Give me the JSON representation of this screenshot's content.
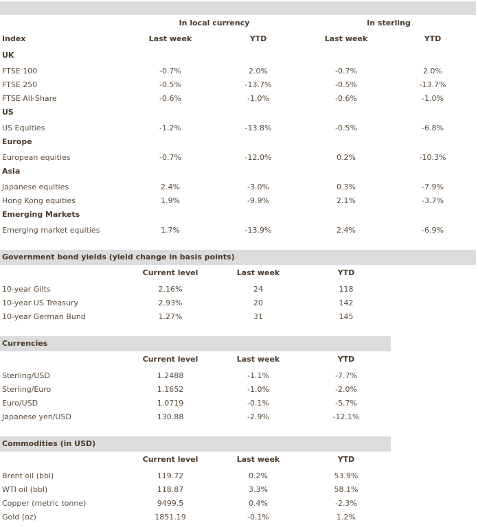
{
  "equities": {
    "group_headers": [
      "In local currency",
      "In sterling"
    ],
    "columns": [
      "Index",
      "Last week",
      "YTD",
      "Last week",
      "YTD"
    ],
    "sections": [
      {
        "title": "UK",
        "rows": [
          {
            "name": "FTSE 100",
            "values": [
              "-0.7%",
              "2.0%",
              "-0.7%",
              "2.0%"
            ]
          },
          {
            "name": "FTSE 250",
            "values": [
              "-0.5%",
              "-13.7%",
              "-0.5%",
              "-13.7%"
            ]
          },
          {
            "name": "FTSE All-Share",
            "values": [
              "-0.6%",
              "-1.0%",
              "-0.6%",
              "-1.0%"
            ]
          }
        ]
      },
      {
        "title": "US",
        "rows": [
          {
            "name": "US Equities",
            "values": [
              "-1.2%",
              "-13.8%",
              "-0.5%",
              "-6.8%"
            ]
          }
        ]
      },
      {
        "title": "Europe",
        "rows": [
          {
            "name": "European equities",
            "values": [
              "-0.7%",
              "-12.0%",
              "0.2%",
              "-10.3%"
            ]
          }
        ]
      },
      {
        "title": "Asia",
        "rows": [
          {
            "name": "Japanese equities",
            "values": [
              "2.4%",
              "-3.0%",
              "0.3%",
              "-7.9%"
            ]
          },
          {
            "name": "Hong Kong equities",
            "values": [
              "1.9%",
              "-9.9%",
              "2.1%",
              "-3.7%"
            ]
          }
        ]
      },
      {
        "title": "Emerging Markets",
        "rows": [
          {
            "name": "Emerging market equities",
            "values": [
              "1.7%",
              "-13.9%",
              "2.4%",
              "-6.9%"
            ]
          }
        ]
      }
    ]
  },
  "bonds": {
    "title": "Government bond yields (yield change in basis points)",
    "columns": [
      "Current level",
      "Last week",
      "YTD"
    ],
    "rows": [
      {
        "name": "10-year Gilts",
        "values": [
          "2.16%",
          "24",
          "118"
        ]
      },
      {
        "name": "10-year US Treasury",
        "values": [
          "2.93%",
          "20",
          "142"
        ]
      },
      {
        "name": "10-year German Bund",
        "values": [
          "1.27%",
          "31",
          "145"
        ]
      }
    ]
  },
  "currencies": {
    "title": "Currencies",
    "columns": [
      "Current level",
      "Last week",
      "YTD"
    ],
    "rows": [
      {
        "name": "Sterling/USD",
        "values": [
          "1.2488",
          "-1.1%",
          "-7.7%"
        ]
      },
      {
        "name": "Sterling/Euro",
        "values": [
          "1.1652",
          "-1.0%",
          "-2.0%"
        ]
      },
      {
        "name": "Euro/USD",
        "values": [
          "1.0719",
          "-0.1%",
          "-5.7%"
        ]
      },
      {
        "name": "Japanese yen/USD",
        "values": [
          "130.88",
          "-2.9%",
          "-12.1%"
        ]
      }
    ]
  },
  "commodities": {
    "title": "Commodities (in USD)",
    "columns": [
      "Current level",
      "Last week",
      "YTD"
    ],
    "rows": [
      {
        "name": "Brent oil (bbl)",
        "values": [
          "119.72",
          "0.2%",
          "53.9%"
        ]
      },
      {
        "name": "WTI oil (bbl)",
        "values": [
          "118.87",
          "3.3%",
          "58.1%"
        ]
      },
      {
        "name": "Copper (metric tonne)",
        "values": [
          "9499.5",
          "0.4%",
          "-2.3%"
        ]
      },
      {
        "name": "Gold (oz)",
        "values": [
          "1851.19",
          "-0.1%",
          "1.2%"
        ]
      }
    ]
  }
}
